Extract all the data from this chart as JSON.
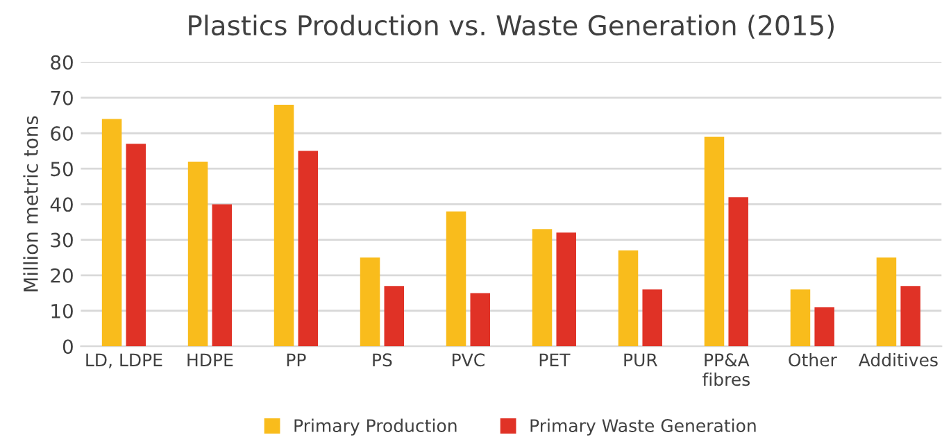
{
  "chart_data": {
    "type": "bar",
    "title": "Plastics Production vs. Waste Generation (2015)",
    "ylabel": "Million metric tons",
    "categories": [
      "LD, LDPE",
      "HDPE",
      "PP",
      "PS",
      "PVC",
      "PET",
      "PUR",
      "PP&A fibres",
      "Other",
      "Additives"
    ],
    "series": [
      {
        "name": "Primary Production",
        "color": "#f9bc1c",
        "values": [
          64,
          52,
          68,
          25,
          38,
          33,
          27,
          59,
          16,
          25
        ]
      },
      {
        "name": "Primary Waste Generation",
        "color": "#e03226",
        "values": [
          57,
          40,
          55,
          17,
          15,
          32,
          16,
          42,
          11,
          17
        ]
      }
    ],
    "ylim": [
      0,
      80
    ],
    "yticks": [
      0,
      10,
      20,
      30,
      40,
      50,
      60,
      70,
      80
    ],
    "grid": "y",
    "legend": "bottom"
  }
}
